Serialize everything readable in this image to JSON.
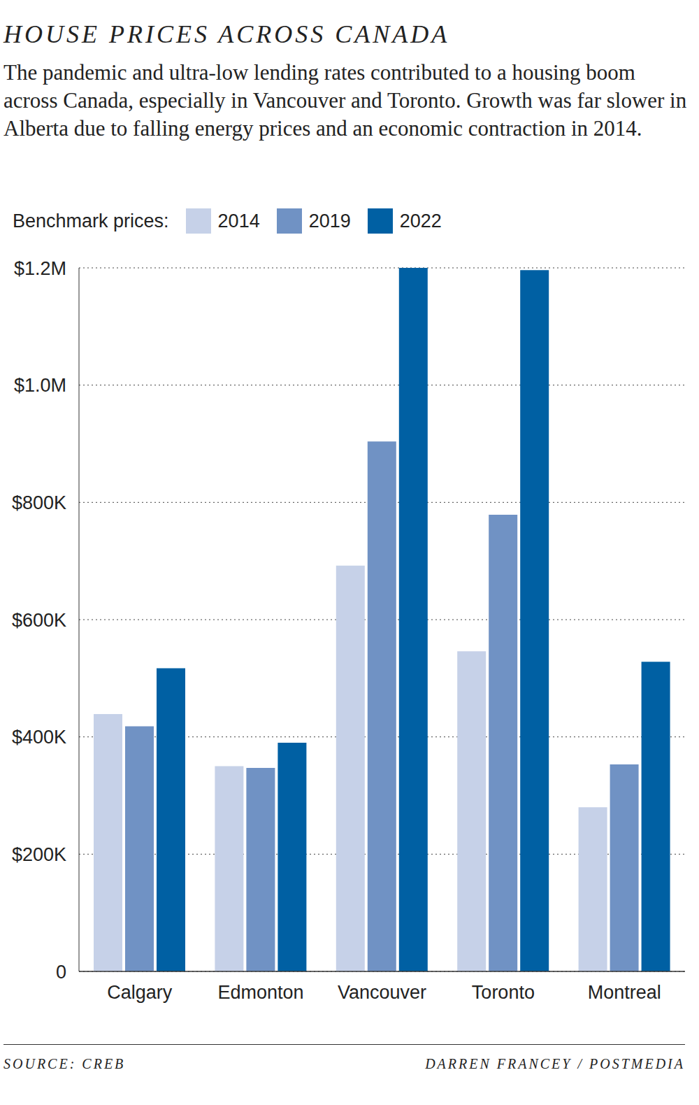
{
  "chart_data": {
    "type": "bar",
    "title": "HOUSE PRICES ACROSS CANADA",
    "subtitle": "The pandemic and ultra-low lending rates contributed to a housing boom across Canada, especially in Vancouver and Toronto. Growth was far slower in Alberta due to falling energy prices and an economic contraction in 2014.",
    "legend_title": "Benchmark prices:",
    "legend": "top-left",
    "categories": [
      "Calgary",
      "Edmonton",
      "Vancouver",
      "Toronto",
      "Montreal"
    ],
    "series": [
      {
        "name": "2014",
        "color": "#c6d1e8",
        "values": [
          439000,
          350000,
          692000,
          546000,
          280000
        ]
      },
      {
        "name": "2019",
        "color": "#7092c4",
        "values": [
          418000,
          347000,
          904000,
          779000,
          353000
        ]
      },
      {
        "name": "2022",
        "color": "#0060a3",
        "values": [
          517000,
          390000,
          1200000,
          1196000,
          528000
        ]
      }
    ],
    "ylim": [
      0,
      1200000
    ],
    "yticks": [
      0,
      {
        "value": 200000,
        "label": "$200K"
      },
      {
        "value": 400000,
        "label": "$400K"
      },
      {
        "value": 600000,
        "label": "$600K"
      },
      {
        "value": 800000,
        "label": "$800K"
      },
      {
        "value": 1000000,
        "label": "$1.0M"
      },
      {
        "value": 1200000,
        "label": "$1.2M"
      }
    ],
    "grid": true,
    "source": "SOURCE: CREB",
    "credit": "DARREN FRANCEY / POSTMEDIA"
  }
}
